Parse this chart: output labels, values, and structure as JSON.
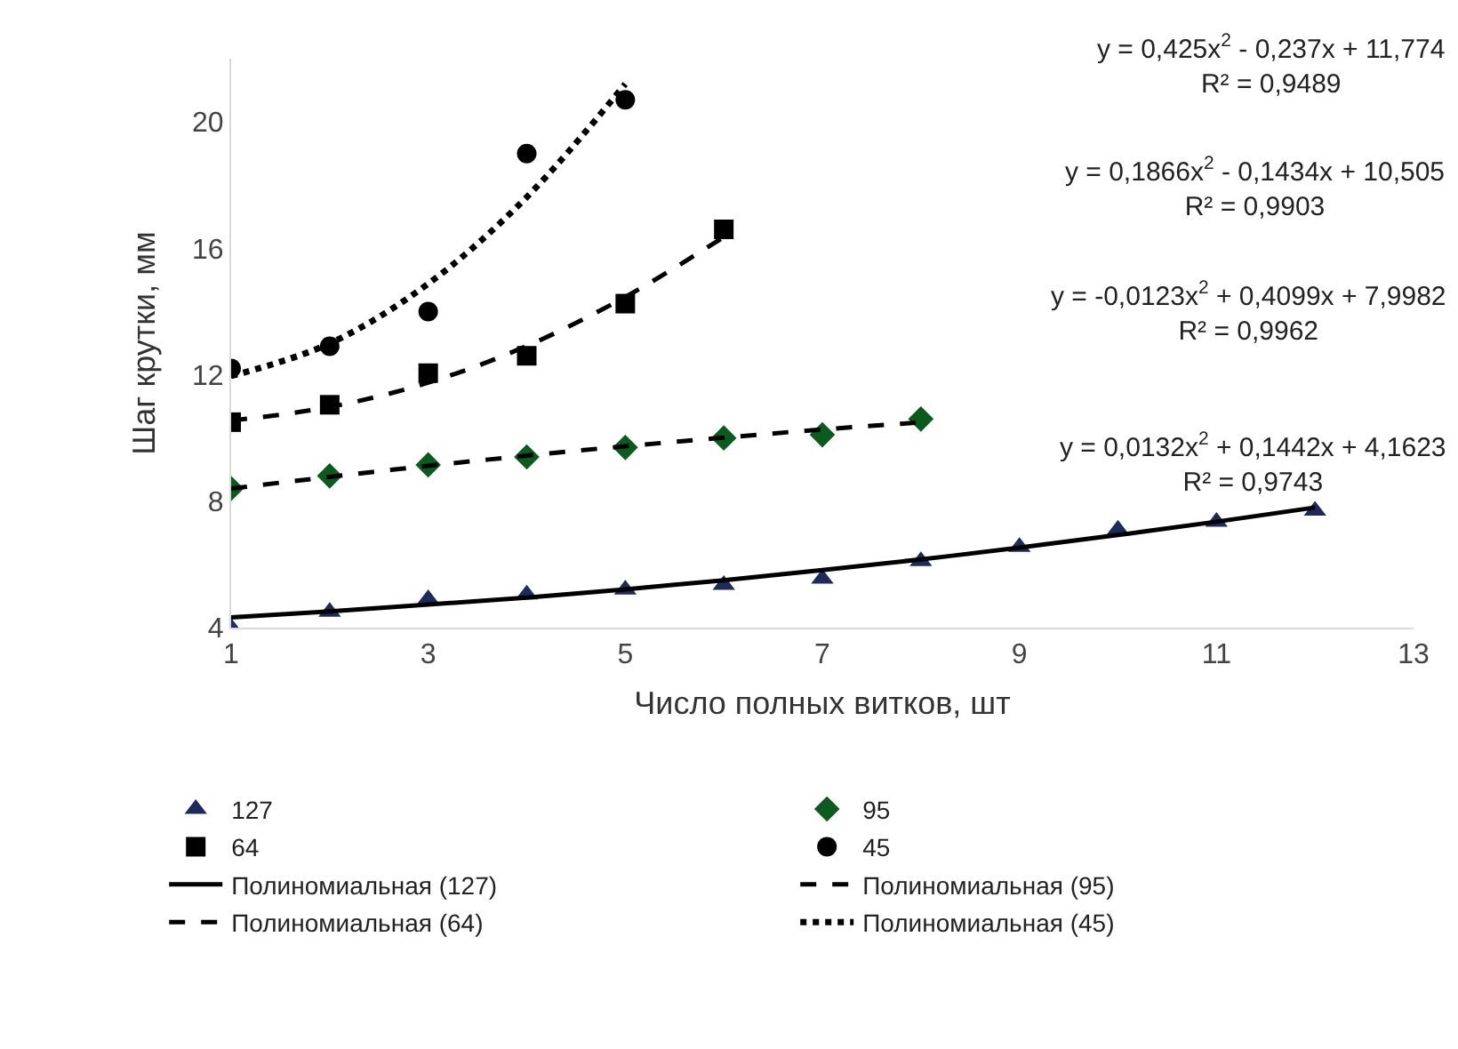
{
  "chart_data": {
    "type": "scatter",
    "xlabel": "Число полных витков, шт",
    "ylabel": "Шаг крутки, мм",
    "xlim": [
      1,
      13
    ],
    "xticks": [
      1,
      3,
      5,
      7,
      9,
      11,
      13
    ],
    "ylim": [
      4,
      22
    ],
    "yticks": [
      4,
      8,
      12,
      16,
      20
    ],
    "legend": "bottom",
    "series": [
      {
        "name": "127",
        "type": "scatter",
        "marker": "triangle",
        "color": "#1f2a5c",
        "x": [
          1,
          2,
          3,
          4,
          5,
          6,
          7,
          8,
          9,
          10,
          11,
          12
        ],
        "values": [
          4.0,
          4.5,
          4.9,
          5.05,
          5.2,
          5.35,
          5.55,
          6.1,
          6.55,
          7.1,
          7.35,
          7.7
        ]
      },
      {
        "name": "95",
        "type": "scatter",
        "marker": "diamond",
        "color": "#0b5a1e",
        "x": [
          1,
          2,
          3,
          4,
          5,
          6,
          7,
          8
        ],
        "values": [
          8.4,
          8.8,
          9.15,
          9.4,
          9.7,
          10.0,
          10.1,
          10.6
        ]
      },
      {
        "name": "64",
        "type": "scatter",
        "marker": "square",
        "color": "#000000",
        "x": [
          1,
          2,
          3,
          4,
          5,
          6
        ],
        "values": [
          10.5,
          11.05,
          12.05,
          12.6,
          14.25,
          16.6
        ]
      },
      {
        "name": "45",
        "type": "scatter",
        "marker": "circle",
        "color": "#000000",
        "x": [
          1,
          2,
          3,
          4,
          5
        ],
        "values": [
          12.2,
          12.9,
          14.0,
          19.0,
          20.7
        ]
      },
      {
        "name": "Полиномиальная (127)",
        "type": "line",
        "line_style": "solid",
        "color": "#000000",
        "x": [
          1,
          2,
          3,
          4,
          5,
          6,
          7,
          8,
          9,
          10,
          11,
          12
        ],
        "values": [
          4.32,
          4.51,
          4.73,
          4.95,
          5.21,
          5.5,
          5.82,
          6.16,
          6.53,
          6.93,
          7.35,
          7.8
        ]
      },
      {
        "name": "Полиномиальная (95)",
        "type": "line",
        "line_style": "dashed",
        "color": "#000000",
        "x": [
          1,
          2,
          3,
          4,
          5,
          6,
          7,
          8
        ],
        "values": [
          8.4,
          8.77,
          9.12,
          9.44,
          9.74,
          10.01,
          10.27,
          10.49
        ]
      },
      {
        "name": "Полиномиальная (64)",
        "type": "line",
        "line_style": "dashed",
        "color": "#000000",
        "x": [
          1,
          2,
          3,
          4,
          5,
          6
        ],
        "values": [
          10.55,
          10.98,
          11.75,
          12.91,
          14.46,
          16.36
        ]
      },
      {
        "name": "Полиномиальная (45)",
        "type": "line",
        "line_style": "dotted",
        "color": "#000000",
        "x": [
          1,
          2,
          3,
          4,
          5
        ],
        "values": [
          11.96,
          12.99,
          14.88,
          17.62,
          21.2
        ]
      }
    ],
    "annotations": [
      "y = 0,425x$^{2}$ - 0,237x + 11,774\nR² = 0,9489",
      "y = 0,1866x$^{2}$ - 0,1434x + 10,505\nR² = 0,9903",
      "y = -0,0123x$^{2}$ + 0,4099x + 7,9982\nR² = 0,9962",
      "y = 0,0132x$^{2}$ + 0,1442x + 4,1623\nR² = 0,9743"
    ]
  }
}
